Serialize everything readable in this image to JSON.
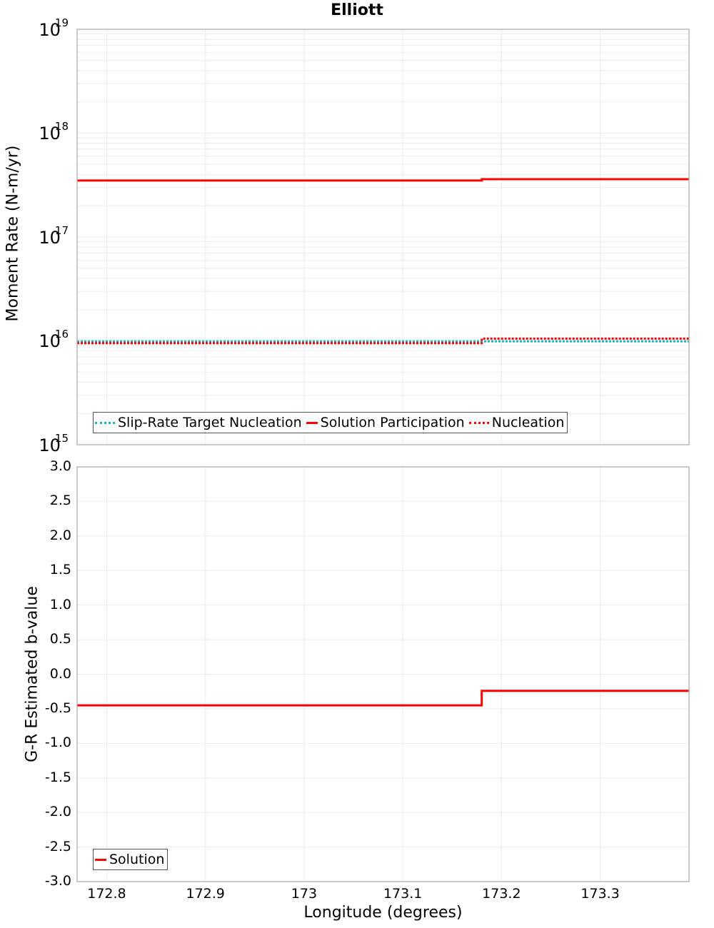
{
  "title": "Elliott",
  "top_panel": {
    "ylabel": "Moment Rate (N-m/yr)",
    "yticks": [
      {
        "base": "10",
        "exp": "19"
      },
      {
        "base": "10",
        "exp": "18"
      },
      {
        "base": "10",
        "exp": "17"
      },
      {
        "base": "10",
        "exp": "16"
      },
      {
        "base": "10",
        "exp": "15"
      }
    ],
    "legend": [
      {
        "label": "Slip-Rate Target Nucleation",
        "style": "dotted",
        "color": "#17b5c0"
      },
      {
        "label": "Solution Participation",
        "style": "solid",
        "color": "#ff0000"
      },
      {
        "label": "Nucleation",
        "style": "dotted",
        "color": "#ff0000"
      }
    ]
  },
  "bottom_panel": {
    "ylabel": "G-R Estimated b-value",
    "yticks": [
      "3.0",
      "2.5",
      "2.0",
      "1.5",
      "1.0",
      "0.5",
      "0.0",
      "-0.5",
      "-1.0",
      "-1.5",
      "-2.0",
      "-2.5",
      "-3.0"
    ],
    "legend": [
      {
        "label": "Solution",
        "style": "solid",
        "color": "#ff0000"
      }
    ]
  },
  "xaxis": {
    "label": "Longitude (degrees)",
    "ticks": [
      "172.8",
      "172.9",
      "173",
      "173.1",
      "173.2",
      "173.3"
    ]
  },
  "chart_data": [
    {
      "type": "line",
      "title": "Elliott",
      "xlabel": "Longitude (degrees)",
      "ylabel": "Moment Rate (N-m/yr)",
      "yscale": "log",
      "ylim": [
        1000000000000000.0,
        1e+19
      ],
      "xlim": [
        172.77,
        173.39
      ],
      "grid": true,
      "legend_position": "lower left",
      "x": [
        172.77,
        173.18,
        173.39
      ],
      "series": [
        {
          "name": "Slip-Rate Target Nucleation",
          "style": "dotted",
          "color": "#17b5c0",
          "step_values": [
            9900000000000000.0,
            9900000000000000.0
          ]
        },
        {
          "name": "Solution Participation",
          "style": "solid",
          "color": "#ff0000",
          "step_values": [
            3.5e+17,
            3.6e+17
          ]
        },
        {
          "name": "Nucleation",
          "style": "dotted",
          "color": "#ff0000",
          "step_values": [
            9500000000000000.0,
            1.05e+16
          ]
        }
      ]
    },
    {
      "type": "line",
      "title": "",
      "xlabel": "Longitude (degrees)",
      "ylabel": "G-R Estimated b-value",
      "ylim": [
        -3.0,
        3.0
      ],
      "xlim": [
        172.77,
        173.39
      ],
      "grid": true,
      "legend_position": "lower left",
      "x": [
        172.77,
        173.18,
        173.39
      ],
      "series": [
        {
          "name": "Solution",
          "style": "solid",
          "color": "#ff0000",
          "step_values": [
            -0.45,
            -0.24
          ]
        }
      ]
    }
  ]
}
